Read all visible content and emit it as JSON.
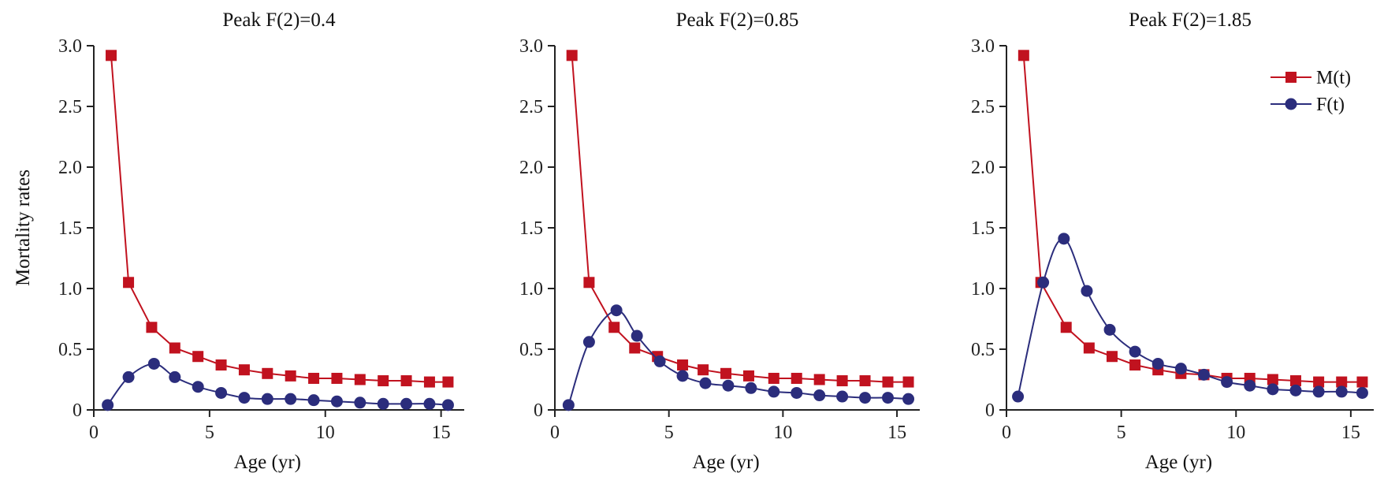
{
  "colors": {
    "M": "#c1121f",
    "F": "#2b2d7c"
  },
  "chart_data": [
    {
      "type": "line",
      "title": "Peak F(2)=0.4",
      "xlabel": "Age (yr)",
      "ylabel": "Mortality rates",
      "xlim": [
        0,
        16
      ],
      "ylim": [
        0,
        3.0
      ],
      "xticks": [
        "0",
        "5",
        "10",
        "15"
      ],
      "yticks": [
        "0",
        "0.5",
        "1.0",
        "1.5",
        "2.0",
        "2.5",
        "3.0"
      ],
      "legend": false,
      "series": [
        {
          "name": "M(t)",
          "marker": "square",
          "x": [
            0.75,
            1.5,
            2.5,
            3.5,
            4.5,
            5.5,
            6.5,
            7.5,
            8.5,
            9.5,
            10.5,
            11.5,
            12.5,
            13.5,
            14.5,
            15.3
          ],
          "y": [
            2.92,
            1.05,
            0.68,
            0.51,
            0.44,
            0.37,
            0.33,
            0.3,
            0.28,
            0.26,
            0.26,
            0.25,
            0.24,
            0.24,
            0.23,
            0.23
          ]
        },
        {
          "name": "F(t)",
          "marker": "circle",
          "x": [
            0.6,
            1.5,
            2.6,
            3.5,
            4.5,
            5.5,
            6.5,
            7.5,
            8.5,
            9.5,
            10.5,
            11.5,
            12.5,
            13.5,
            14.5,
            15.3
          ],
          "y": [
            0.04,
            0.27,
            0.38,
            0.27,
            0.19,
            0.14,
            0.1,
            0.09,
            0.09,
            0.08,
            0.07,
            0.06,
            0.05,
            0.05,
            0.05,
            0.04
          ]
        }
      ]
    },
    {
      "type": "line",
      "title": "Peak F(2)=0.85",
      "xlabel": "Age (yr)",
      "ylabel": "",
      "xlim": [
        0,
        16
      ],
      "ylim": [
        0,
        3.0
      ],
      "xticks": [
        "0",
        "5",
        "10",
        "15"
      ],
      "yticks": [
        "0",
        "0.5",
        "1.0",
        "1.5",
        "2.0",
        "2.5",
        "3.0"
      ],
      "legend": false,
      "series": [
        {
          "name": "M(t)",
          "marker": "square",
          "x": [
            0.75,
            1.5,
            2.6,
            3.5,
            4.5,
            5.6,
            6.5,
            7.5,
            8.5,
            9.6,
            10.6,
            11.6,
            12.6,
            13.6,
            14.6,
            15.5
          ],
          "y": [
            2.92,
            1.05,
            0.68,
            0.51,
            0.44,
            0.37,
            0.33,
            0.3,
            0.28,
            0.26,
            0.26,
            0.25,
            0.24,
            0.24,
            0.23,
            0.23
          ]
        },
        {
          "name": "F(t)",
          "marker": "circle",
          "x": [
            0.6,
            1.5,
            2.7,
            3.6,
            4.6,
            5.6,
            6.6,
            7.6,
            8.6,
            9.6,
            10.6,
            11.6,
            12.6,
            13.6,
            14.6,
            15.5
          ],
          "y": [
            0.04,
            0.56,
            0.82,
            0.61,
            0.4,
            0.28,
            0.22,
            0.2,
            0.18,
            0.15,
            0.14,
            0.12,
            0.11,
            0.1,
            0.1,
            0.09
          ]
        }
      ]
    },
    {
      "type": "line",
      "title": "Peak F(2)=1.85",
      "xlabel": "Age (yr)",
      "ylabel": "",
      "xlim": [
        0,
        16
      ],
      "ylim": [
        0,
        3.0
      ],
      "xticks": [
        "0",
        "5",
        "10",
        "15"
      ],
      "yticks": [
        "0",
        "0.5",
        "1.0",
        "1.5",
        "2.0",
        "2.5",
        "3.0"
      ],
      "legend": true,
      "legend_position": "top-right",
      "series": [
        {
          "name": "M(t)",
          "marker": "square",
          "x": [
            0.75,
            1.5,
            2.6,
            3.6,
            4.6,
            5.6,
            6.6,
            7.6,
            8.6,
            9.6,
            10.6,
            11.6,
            12.6,
            13.6,
            14.6,
            15.5
          ],
          "y": [
            2.92,
            1.05,
            0.68,
            0.51,
            0.44,
            0.37,
            0.33,
            0.3,
            0.29,
            0.26,
            0.26,
            0.25,
            0.24,
            0.23,
            0.23,
            0.23
          ]
        },
        {
          "name": "F(t)",
          "marker": "circle",
          "x": [
            0.5,
            1.6,
            2.5,
            3.5,
            4.5,
            5.6,
            6.6,
            7.6,
            8.6,
            9.6,
            10.6,
            11.6,
            12.6,
            13.6,
            14.6,
            15.5
          ],
          "y": [
            0.11,
            1.05,
            1.41,
            0.98,
            0.66,
            0.48,
            0.38,
            0.34,
            0.29,
            0.23,
            0.2,
            0.17,
            0.16,
            0.15,
            0.15,
            0.14
          ]
        }
      ]
    }
  ]
}
